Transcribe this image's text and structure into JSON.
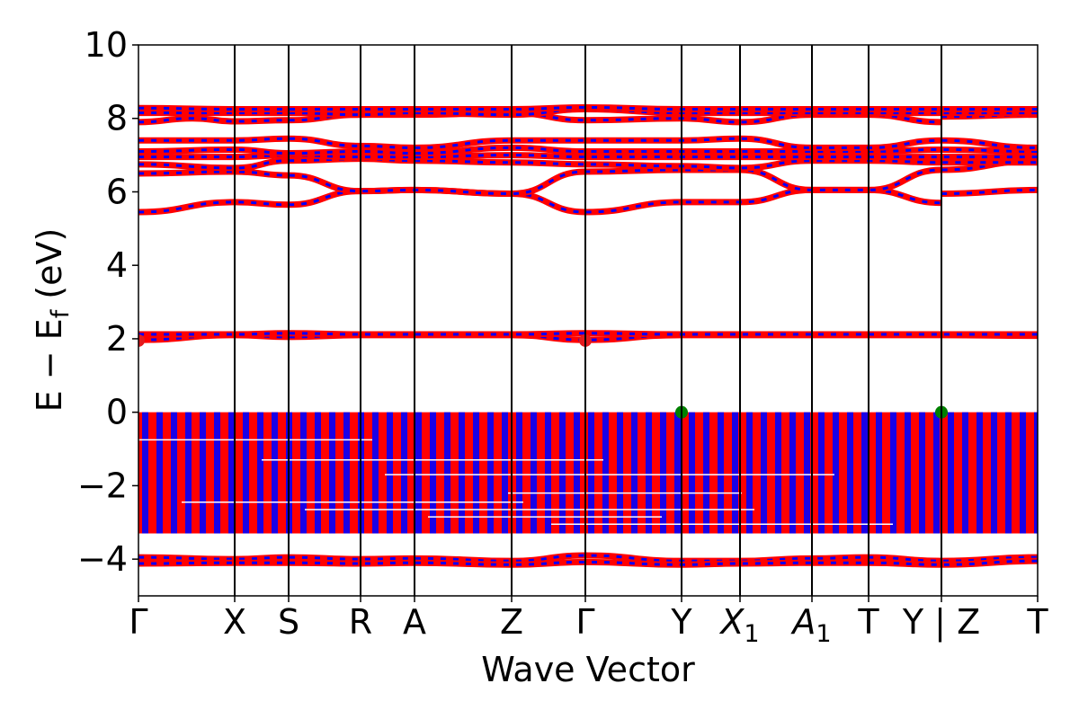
{
  "chart_data": {
    "type": "line",
    "xlabel": "Wave Vector",
    "ylabel": "E − E_f (eV)",
    "ylabel_parts": {
      "main": "E − E",
      "sub": "f",
      "unit": " (eV)"
    },
    "ylim": [
      -5,
      10
    ],
    "yticks": [
      -4,
      -2,
      0,
      2,
      4,
      6,
      8,
      10
    ],
    "ytick_labels": [
      "−4",
      "−2",
      "0",
      "2",
      "4",
      "6",
      "8",
      "10"
    ],
    "xlim": [
      0,
      10
    ],
    "kpoints": [
      {
        "x": 0.0,
        "label": "Γ",
        "sub": ""
      },
      {
        "x": 1.07,
        "label": "X",
        "sub": ""
      },
      {
        "x": 1.67,
        "label": "S",
        "sub": ""
      },
      {
        "x": 2.47,
        "label": "R",
        "sub": ""
      },
      {
        "x": 3.07,
        "label": "A",
        "sub": ""
      },
      {
        "x": 4.15,
        "label": "Z",
        "sub": ""
      },
      {
        "x": 4.97,
        "label": "Γ",
        "sub": ""
      },
      {
        "x": 6.04,
        "label": "Y",
        "sub": ""
      },
      {
        "x": 6.69,
        "label": "X",
        "sub": "1"
      },
      {
        "x": 7.49,
        "label": "A",
        "sub": "1"
      },
      {
        "x": 8.12,
        "label": "T",
        "sub": ""
      },
      {
        "x": 8.93,
        "label": "Y | Z",
        "sub": ""
      },
      {
        "x": 10.0,
        "label": "T",
        "sub": ""
      }
    ],
    "colors": {
      "spin_up": "#ff0000",
      "spin_down": "#0000ff",
      "vbm": "#008000",
      "cbm": "#e31a1c"
    },
    "bands": [
      {
        "name": "conduction-1",
        "points": [
          [
            0,
            5.45
          ],
          [
            1.07,
            5.72
          ],
          [
            1.67,
            5.65
          ],
          [
            2.47,
            6.02
          ],
          [
            3.07,
            6.05
          ],
          [
            4.15,
            5.95
          ],
          [
            4.97,
            5.45
          ],
          [
            6.04,
            5.72
          ],
          [
            6.69,
            5.72
          ],
          [
            7.49,
            6.05
          ],
          [
            8.12,
            6.05
          ],
          [
            8.93,
            5.7
          ]
        ]
      },
      {
        "name": "conduction-1b",
        "points": [
          [
            8.93,
            5.95
          ],
          [
            10.0,
            6.05
          ]
        ]
      },
      {
        "name": "conduction-2",
        "points": [
          [
            0,
            6.5
          ],
          [
            1.07,
            6.55
          ],
          [
            1.67,
            6.45
          ],
          [
            2.47,
            6.02
          ],
          [
            3.07,
            6.05
          ],
          [
            4.15,
            5.95
          ],
          [
            4.97,
            6.55
          ],
          [
            6.04,
            6.6
          ],
          [
            6.69,
            6.6
          ],
          [
            7.49,
            6.05
          ],
          [
            8.12,
            6.05
          ],
          [
            8.93,
            6.6
          ],
          [
            10.0,
            6.85
          ]
        ]
      },
      {
        "name": "conduction-3",
        "points": [
          [
            0,
            6.75
          ],
          [
            1.07,
            6.65
          ],
          [
            1.67,
            6.85
          ],
          [
            2.47,
            6.9
          ],
          [
            3.07,
            6.85
          ],
          [
            4.15,
            6.8
          ],
          [
            4.97,
            6.75
          ],
          [
            6.04,
            6.7
          ],
          [
            6.69,
            6.65
          ],
          [
            7.49,
            6.85
          ],
          [
            8.12,
            6.85
          ],
          [
            8.93,
            6.8
          ],
          [
            10.0,
            6.8
          ]
        ]
      },
      {
        "name": "conduction-4",
        "points": [
          [
            0,
            6.95
          ],
          [
            1.07,
            6.95
          ],
          [
            1.67,
            7.0
          ],
          [
            2.47,
            6.95
          ],
          [
            3.07,
            6.95
          ],
          [
            4.15,
            7.0
          ],
          [
            4.97,
            6.95
          ],
          [
            6.04,
            6.95
          ],
          [
            6.69,
            6.95
          ],
          [
            7.49,
            6.95
          ],
          [
            8.12,
            6.95
          ],
          [
            8.93,
            6.95
          ],
          [
            10.0,
            6.95
          ]
        ]
      },
      {
        "name": "conduction-5",
        "points": [
          [
            0,
            7.1
          ],
          [
            1.07,
            7.15
          ],
          [
            1.67,
            7.05
          ],
          [
            2.47,
            7.1
          ],
          [
            3.07,
            7.05
          ],
          [
            4.15,
            7.2
          ],
          [
            4.97,
            7.1
          ],
          [
            6.04,
            7.1
          ],
          [
            6.69,
            7.1
          ],
          [
            7.49,
            7.1
          ],
          [
            8.12,
            7.1
          ],
          [
            8.93,
            7.15
          ],
          [
            10.0,
            7.1
          ]
        ]
      },
      {
        "name": "conduction-6",
        "points": [
          [
            0,
            7.4
          ],
          [
            1.07,
            7.4
          ],
          [
            1.67,
            7.45
          ],
          [
            2.47,
            7.25
          ],
          [
            3.07,
            7.2
          ],
          [
            4.15,
            7.4
          ],
          [
            4.97,
            7.4
          ],
          [
            6.04,
            7.4
          ],
          [
            6.69,
            7.45
          ],
          [
            7.49,
            7.2
          ],
          [
            8.12,
            7.2
          ],
          [
            8.93,
            7.4
          ],
          [
            10.0,
            7.2
          ]
        ]
      },
      {
        "name": "conduction-7",
        "points": [
          [
            0,
            7.9
          ],
          [
            0.6,
            8.0
          ],
          [
            1.07,
            7.92
          ],
          [
            1.67,
            7.95
          ],
          [
            2.47,
            8.1
          ],
          [
            3.07,
            8.1
          ],
          [
            4.15,
            8.15
          ],
          [
            4.97,
            7.95
          ],
          [
            6.04,
            8.0
          ],
          [
            6.69,
            7.9
          ],
          [
            7.49,
            8.1
          ],
          [
            8.12,
            8.1
          ],
          [
            8.93,
            7.9
          ]
        ]
      },
      {
        "name": "conduction-7b",
        "points": [
          [
            8.93,
            8.05
          ],
          [
            10.0,
            8.1
          ]
        ]
      },
      {
        "name": "conduction-8",
        "points": [
          [
            0,
            8.15
          ],
          [
            1.07,
            8.15
          ],
          [
            1.67,
            8.15
          ],
          [
            2.47,
            8.1
          ],
          [
            3.07,
            8.15
          ],
          [
            4.15,
            8.1
          ],
          [
            4.97,
            8.25
          ],
          [
            6.04,
            8.15
          ],
          [
            6.69,
            8.15
          ],
          [
            7.49,
            8.15
          ],
          [
            8.12,
            8.15
          ],
          [
            8.93,
            8.15
          ],
          [
            10.0,
            8.15
          ]
        ]
      },
      {
        "name": "conduction-9",
        "points": [
          [
            0,
            8.28
          ],
          [
            1.07,
            8.25
          ],
          [
            1.67,
            8.25
          ],
          [
            2.47,
            8.25
          ],
          [
            3.07,
            8.25
          ],
          [
            4.15,
            8.25
          ],
          [
            4.97,
            8.3
          ],
          [
            6.04,
            8.25
          ],
          [
            6.69,
            8.25
          ],
          [
            7.49,
            8.25
          ],
          [
            8.12,
            8.25
          ],
          [
            8.93,
            8.25
          ],
          [
            10.0,
            8.25
          ]
        ]
      },
      {
        "name": "cbm-band",
        "points": [
          [
            0,
            1.97
          ],
          [
            1.07,
            2.1
          ],
          [
            1.67,
            2.05
          ],
          [
            2.47,
            2.1
          ],
          [
            3.07,
            2.1
          ],
          [
            4.15,
            2.1
          ],
          [
            4.97,
            1.97
          ],
          [
            6.04,
            2.1
          ],
          [
            6.69,
            2.1
          ],
          [
            7.49,
            2.1
          ],
          [
            8.12,
            2.1
          ],
          [
            8.93,
            2.1
          ],
          [
            10.0,
            2.08
          ]
        ]
      },
      {
        "name": "defect-band",
        "points": [
          [
            0,
            2.12
          ],
          [
            1.07,
            2.12
          ],
          [
            1.67,
            2.15
          ],
          [
            2.47,
            2.12
          ],
          [
            3.07,
            2.12
          ],
          [
            4.15,
            2.12
          ],
          [
            4.97,
            2.15
          ],
          [
            6.04,
            2.12
          ],
          [
            6.69,
            2.12
          ],
          [
            7.49,
            2.12
          ],
          [
            8.12,
            2.12
          ],
          [
            8.93,
            2.12
          ],
          [
            10.0,
            2.12
          ]
        ]
      },
      {
        "name": "semicore-1",
        "points": [
          [
            0,
            -3.95
          ],
          [
            1.07,
            -4.0
          ],
          [
            1.67,
            -3.95
          ],
          [
            2.47,
            -4.0
          ],
          [
            3.07,
            -3.98
          ],
          [
            4.15,
            -4.05
          ],
          [
            4.97,
            -3.9
          ],
          [
            6.04,
            -4.05
          ],
          [
            6.69,
            -4.05
          ],
          [
            7.49,
            -3.98
          ],
          [
            8.12,
            -3.95
          ],
          [
            8.93,
            -4.05
          ],
          [
            10.0,
            -3.95
          ]
        ]
      },
      {
        "name": "semicore-2",
        "points": [
          [
            0,
            -4.12
          ],
          [
            1.07,
            -4.1
          ],
          [
            1.67,
            -4.1
          ],
          [
            2.47,
            -4.12
          ],
          [
            3.07,
            -4.1
          ],
          [
            4.15,
            -4.15
          ],
          [
            4.97,
            -4.08
          ],
          [
            6.04,
            -4.15
          ],
          [
            6.69,
            -4.12
          ],
          [
            7.49,
            -4.1
          ],
          [
            8.12,
            -4.1
          ],
          [
            8.93,
            -4.15
          ],
          [
            10.0,
            -4.05
          ]
        ]
      }
    ],
    "valence_manifold": {
      "top": 0.0,
      "bottom": -3.3
    },
    "valence_gaps": [
      -0.75,
      -1.3,
      -1.7,
      -2.2,
      -2.45,
      -2.65,
      -2.85,
      -3.05
    ],
    "markers": [
      {
        "name": "cbm",
        "x": 0.0,
        "y": 1.95
      },
      {
        "name": "cbm",
        "x": 4.97,
        "y": 1.95
      },
      {
        "name": "vbm",
        "x": 6.04,
        "y": 0.0
      },
      {
        "name": "vbm",
        "x": 8.93,
        "y": 0.0
      }
    ]
  }
}
